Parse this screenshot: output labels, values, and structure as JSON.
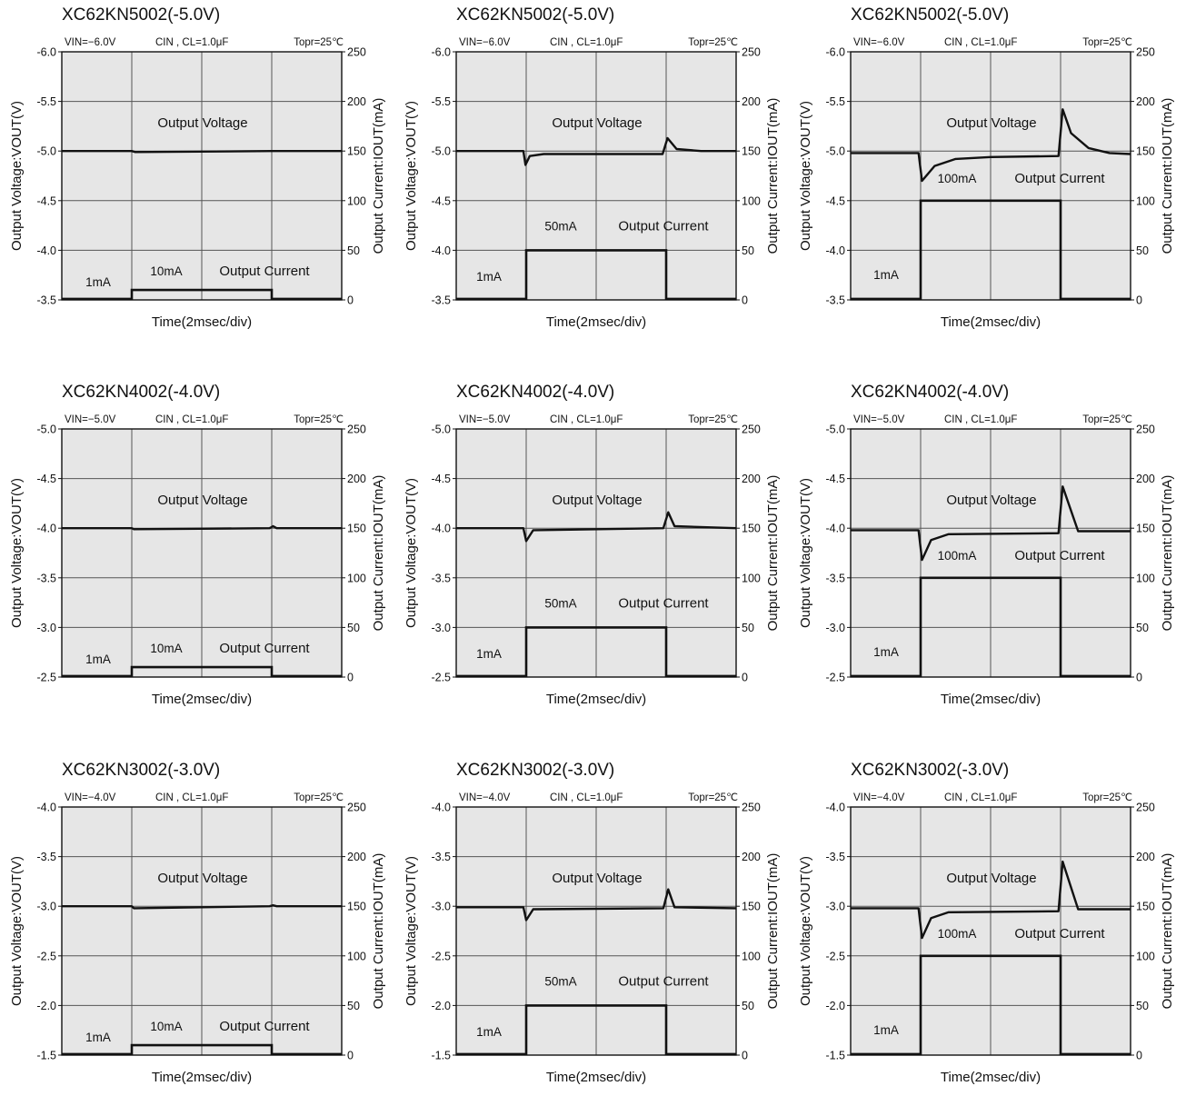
{
  "common": {
    "conditions": {
      "vin_label": "VIN=",
      "cin_cl": "CIN , CL=1.0μF",
      "temp": "Topr=25℃"
    },
    "xlabel": "Time(2msec/div)",
    "ylabel_left": "Output Voltage:VOUT(V)",
    "ylabel_right": "Output Current:IOUT(mA)",
    "voltage_label": "Output Voltage",
    "current_label": "Output Current",
    "base_current_label": "1mA",
    "right_ticks": [
      "0",
      "50",
      "100",
      "150",
      "200",
      "250"
    ],
    "grid": true,
    "x_divisions": 4,
    "y_divisions": 5
  },
  "chart_data": [
    {
      "type": "line",
      "title": "XC62KN5002(-5.0V)",
      "vin": "−6.0V",
      "vout_nominal": -5.0,
      "ylim": [
        -3.5,
        -6.0
      ],
      "left_ticks": [
        "-6.0",
        "-5.5",
        "-5.0",
        "-4.5",
        "-4.0",
        "-3.5"
      ],
      "ylim_right": [
        0,
        250
      ],
      "step_label": "10mA",
      "step_current_ma": 10,
      "step_start_div": 1,
      "step_end_div": 3,
      "voltage_trace": [
        [
          0,
          -5.0
        ],
        [
          1,
          -5.0
        ],
        [
          1.05,
          -4.99
        ],
        [
          3,
          -5.0
        ],
        [
          4,
          -5.0
        ]
      ]
    },
    {
      "type": "line",
      "title": "XC62KN5002(-5.0V)",
      "vin": "−6.0V",
      "vout_nominal": -5.0,
      "ylim": [
        -3.5,
        -6.0
      ],
      "left_ticks": [
        "-6.0",
        "-5.5",
        "-5.0",
        "-4.5",
        "-4.0",
        "-3.5"
      ],
      "ylim_right": [
        0,
        250
      ],
      "step_label": "50mA",
      "step_current_ma": 50,
      "step_start_div": 1,
      "step_end_div": 3,
      "voltage_trace": [
        [
          0,
          -5.0
        ],
        [
          0.96,
          -5.0
        ],
        [
          0.99,
          -4.86
        ],
        [
          1.05,
          -4.95
        ],
        [
          1.25,
          -4.97
        ],
        [
          2.95,
          -4.97
        ],
        [
          3.02,
          -5.13
        ],
        [
          3.15,
          -5.02
        ],
        [
          3.5,
          -5.0
        ],
        [
          4,
          -5.0
        ]
      ]
    },
    {
      "type": "line",
      "title": "XC62KN5002(-5.0V)",
      "vin": "−6.0V",
      "vout_nominal": -5.0,
      "ylim": [
        -3.5,
        -6.0
      ],
      "left_ticks": [
        "-6.0",
        "-5.5",
        "-5.0",
        "-4.5",
        "-4.0",
        "-3.5"
      ],
      "ylim_right": [
        0,
        250
      ],
      "step_label": "100mA",
      "step_current_ma": 100,
      "step_start_div": 1,
      "step_end_div": 3,
      "voltage_trace": [
        [
          0,
          -4.98
        ],
        [
          0.97,
          -4.98
        ],
        [
          1.02,
          -4.7
        ],
        [
          1.2,
          -4.85
        ],
        [
          1.5,
          -4.92
        ],
        [
          2.0,
          -4.94
        ],
        [
          2.97,
          -4.95
        ],
        [
          3.03,
          -5.42
        ],
        [
          3.15,
          -5.18
        ],
        [
          3.4,
          -5.03
        ],
        [
          3.7,
          -4.98
        ],
        [
          4,
          -4.97
        ]
      ]
    },
    {
      "type": "line",
      "title": "XC62KN4002(-4.0V)",
      "vin": "−5.0V",
      "vout_nominal": -4.0,
      "ylim": [
        -2.5,
        -5.0
      ],
      "left_ticks": [
        "-5.0",
        "-4.5",
        "-4.0",
        "-3.5",
        "-3.0",
        "-2.5"
      ],
      "ylim_right": [
        0,
        250
      ],
      "step_label": "10mA",
      "step_current_ma": 10,
      "step_start_div": 1,
      "step_end_div": 3,
      "voltage_trace": [
        [
          0,
          -4.0
        ],
        [
          1,
          -4.0
        ],
        [
          1.03,
          -3.99
        ],
        [
          2.97,
          -4.0
        ],
        [
          3.02,
          -4.02
        ],
        [
          3.07,
          -4.0
        ],
        [
          4,
          -4.0
        ]
      ]
    },
    {
      "type": "line",
      "title": "XC62KN4002(-4.0V)",
      "vin": "−5.0V",
      "vout_nominal": -4.0,
      "ylim": [
        -2.5,
        -5.0
      ],
      "left_ticks": [
        "-5.0",
        "-4.5",
        "-4.0",
        "-3.5",
        "-3.0",
        "-2.5"
      ],
      "ylim_right": [
        0,
        250
      ],
      "step_label": "50mA",
      "step_current_ma": 50,
      "step_start_div": 1,
      "step_end_div": 3,
      "voltage_trace": [
        [
          0,
          -4.0
        ],
        [
          0.96,
          -4.0
        ],
        [
          1.0,
          -3.87
        ],
        [
          1.1,
          -3.98
        ],
        [
          2.96,
          -4.0
        ],
        [
          3.03,
          -4.16
        ],
        [
          3.12,
          -4.02
        ],
        [
          4,
          -4.0
        ]
      ]
    },
    {
      "type": "line",
      "title": "XC62KN4002(-4.0V)",
      "vin": "−5.0V",
      "vout_nominal": -4.0,
      "ylim": [
        -2.5,
        -5.0
      ],
      "left_ticks": [
        "-5.0",
        "-4.5",
        "-4.0",
        "-3.5",
        "-3.0",
        "-2.5"
      ],
      "ylim_right": [
        0,
        250
      ],
      "step_label": "100mA",
      "step_current_ma": 100,
      "step_start_div": 1,
      "step_end_div": 3,
      "voltage_trace": [
        [
          0,
          -3.98
        ],
        [
          0.97,
          -3.98
        ],
        [
          1.02,
          -3.68
        ],
        [
          1.15,
          -3.88
        ],
        [
          1.4,
          -3.94
        ],
        [
          2.97,
          -3.95
        ],
        [
          3.03,
          -4.42
        ],
        [
          3.25,
          -3.97
        ],
        [
          4,
          -3.97
        ]
      ]
    },
    {
      "type": "line",
      "title": "XC62KN3002(-3.0V)",
      "vin": "−4.0V",
      "vout_nominal": -3.0,
      "ylim": [
        -1.5,
        -4.0
      ],
      "left_ticks": [
        "-4.0",
        "-3.5",
        "-3.0",
        "-2.5",
        "-2.0",
        "-1.5"
      ],
      "ylim_right": [
        0,
        250
      ],
      "step_label": "10mA",
      "step_current_ma": 10,
      "step_start_div": 1,
      "step_end_div": 3,
      "voltage_trace": [
        [
          0,
          -3.0
        ],
        [
          1,
          -3.0
        ],
        [
          1.03,
          -2.98
        ],
        [
          2.97,
          -3.0
        ],
        [
          3.02,
          -3.01
        ],
        [
          3.07,
          -3.0
        ],
        [
          4,
          -3.0
        ]
      ]
    },
    {
      "type": "line",
      "title": "XC62KN3002(-3.0V)",
      "vin": "−4.0V",
      "vout_nominal": -3.0,
      "ylim": [
        -1.5,
        -4.0
      ],
      "left_ticks": [
        "-4.0",
        "-3.5",
        "-3.0",
        "-2.5",
        "-2.0",
        "-1.5"
      ],
      "ylim_right": [
        0,
        250
      ],
      "step_label": "50mA",
      "step_current_ma": 50,
      "step_start_div": 1,
      "step_end_div": 3,
      "voltage_trace": [
        [
          0,
          -2.99
        ],
        [
          0.96,
          -2.99
        ],
        [
          1.0,
          -2.86
        ],
        [
          1.1,
          -2.97
        ],
        [
          2.96,
          -2.98
        ],
        [
          3.03,
          -3.17
        ],
        [
          3.12,
          -2.99
        ],
        [
          4,
          -2.98
        ]
      ]
    },
    {
      "type": "line",
      "title": "XC62KN3002(-3.0V)",
      "vin": "−4.0V",
      "vout_nominal": -3.0,
      "ylim": [
        -1.5,
        -4.0
      ],
      "left_ticks": [
        "-4.0",
        "-3.5",
        "-3.0",
        "-2.5",
        "-2.0",
        "-1.5"
      ],
      "ylim_right": [
        0,
        250
      ],
      "step_label": "100mA",
      "step_current_ma": 100,
      "step_start_div": 1,
      "step_end_div": 3,
      "voltage_trace": [
        [
          0,
          -2.98
        ],
        [
          0.97,
          -2.98
        ],
        [
          1.02,
          -2.68
        ],
        [
          1.15,
          -2.88
        ],
        [
          1.4,
          -2.94
        ],
        [
          2.97,
          -2.95
        ],
        [
          3.03,
          -3.45
        ],
        [
          3.25,
          -2.97
        ],
        [
          4,
          -2.97
        ]
      ]
    }
  ]
}
